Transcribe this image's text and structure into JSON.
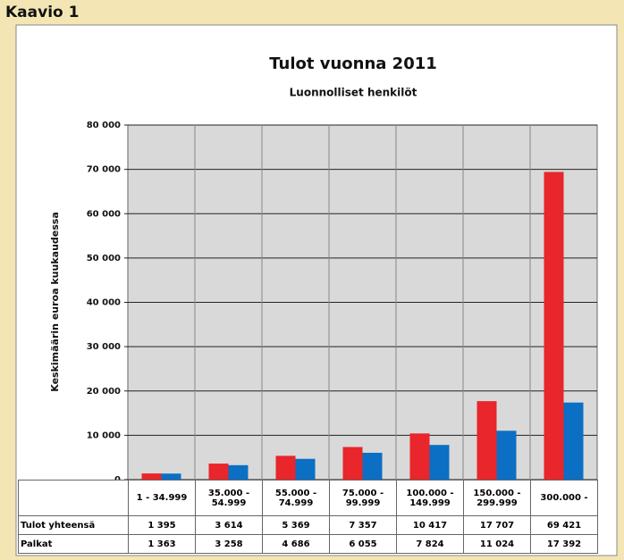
{
  "header": "Kaavio 1",
  "chart_data": {
    "type": "bar",
    "title": "Tulot vuonna 2011",
    "subtitle": "Luonnolliset henkilöt",
    "y_label": "Keskimäärin euroa kuukaudessa",
    "categories": [
      "1 - 34.999",
      "35.000 - 54.999",
      "55.000 - 74.999",
      "75.000 - 99.999",
      "100.000 - 149.999",
      "150.000 - 299.999",
      "300.000 -"
    ],
    "series": [
      {
        "name": "Tulot yhteensä",
        "color": "#e8262b",
        "values": [
          1395,
          3614,
          5369,
          7357,
          10417,
          17707,
          69421
        ],
        "value_labels": [
          "1 395",
          "3 614",
          "5 369",
          "7 357",
          "10 417",
          "17 707",
          "69 421"
        ]
      },
      {
        "name": "Palkat",
        "color": "#0b6fc4",
        "values": [
          1363,
          3258,
          4686,
          6055,
          7824,
          11024,
          17392
        ],
        "value_labels": [
          "1 363",
          "3 258",
          "4 686",
          "6 055",
          "7 824",
          "11 024",
          "17 392"
        ]
      }
    ],
    "ylim": [
      0,
      80000
    ],
    "yticks": [
      0,
      {
        "value": 10000,
        "label": "10 000"
      },
      {
        "value": 20000,
        "label": "20 000"
      },
      {
        "value": 30000,
        "label": "30 000"
      },
      {
        "value": 40000,
        "label": "40 000"
      },
      {
        "value": 50000,
        "label": "50 000"
      },
      {
        "value": 60000,
        "label": "60 000"
      },
      {
        "value": 70000,
        "label": "70 000"
      },
      {
        "value": 80000,
        "label": "80 000"
      }
    ],
    "grid": true
  }
}
